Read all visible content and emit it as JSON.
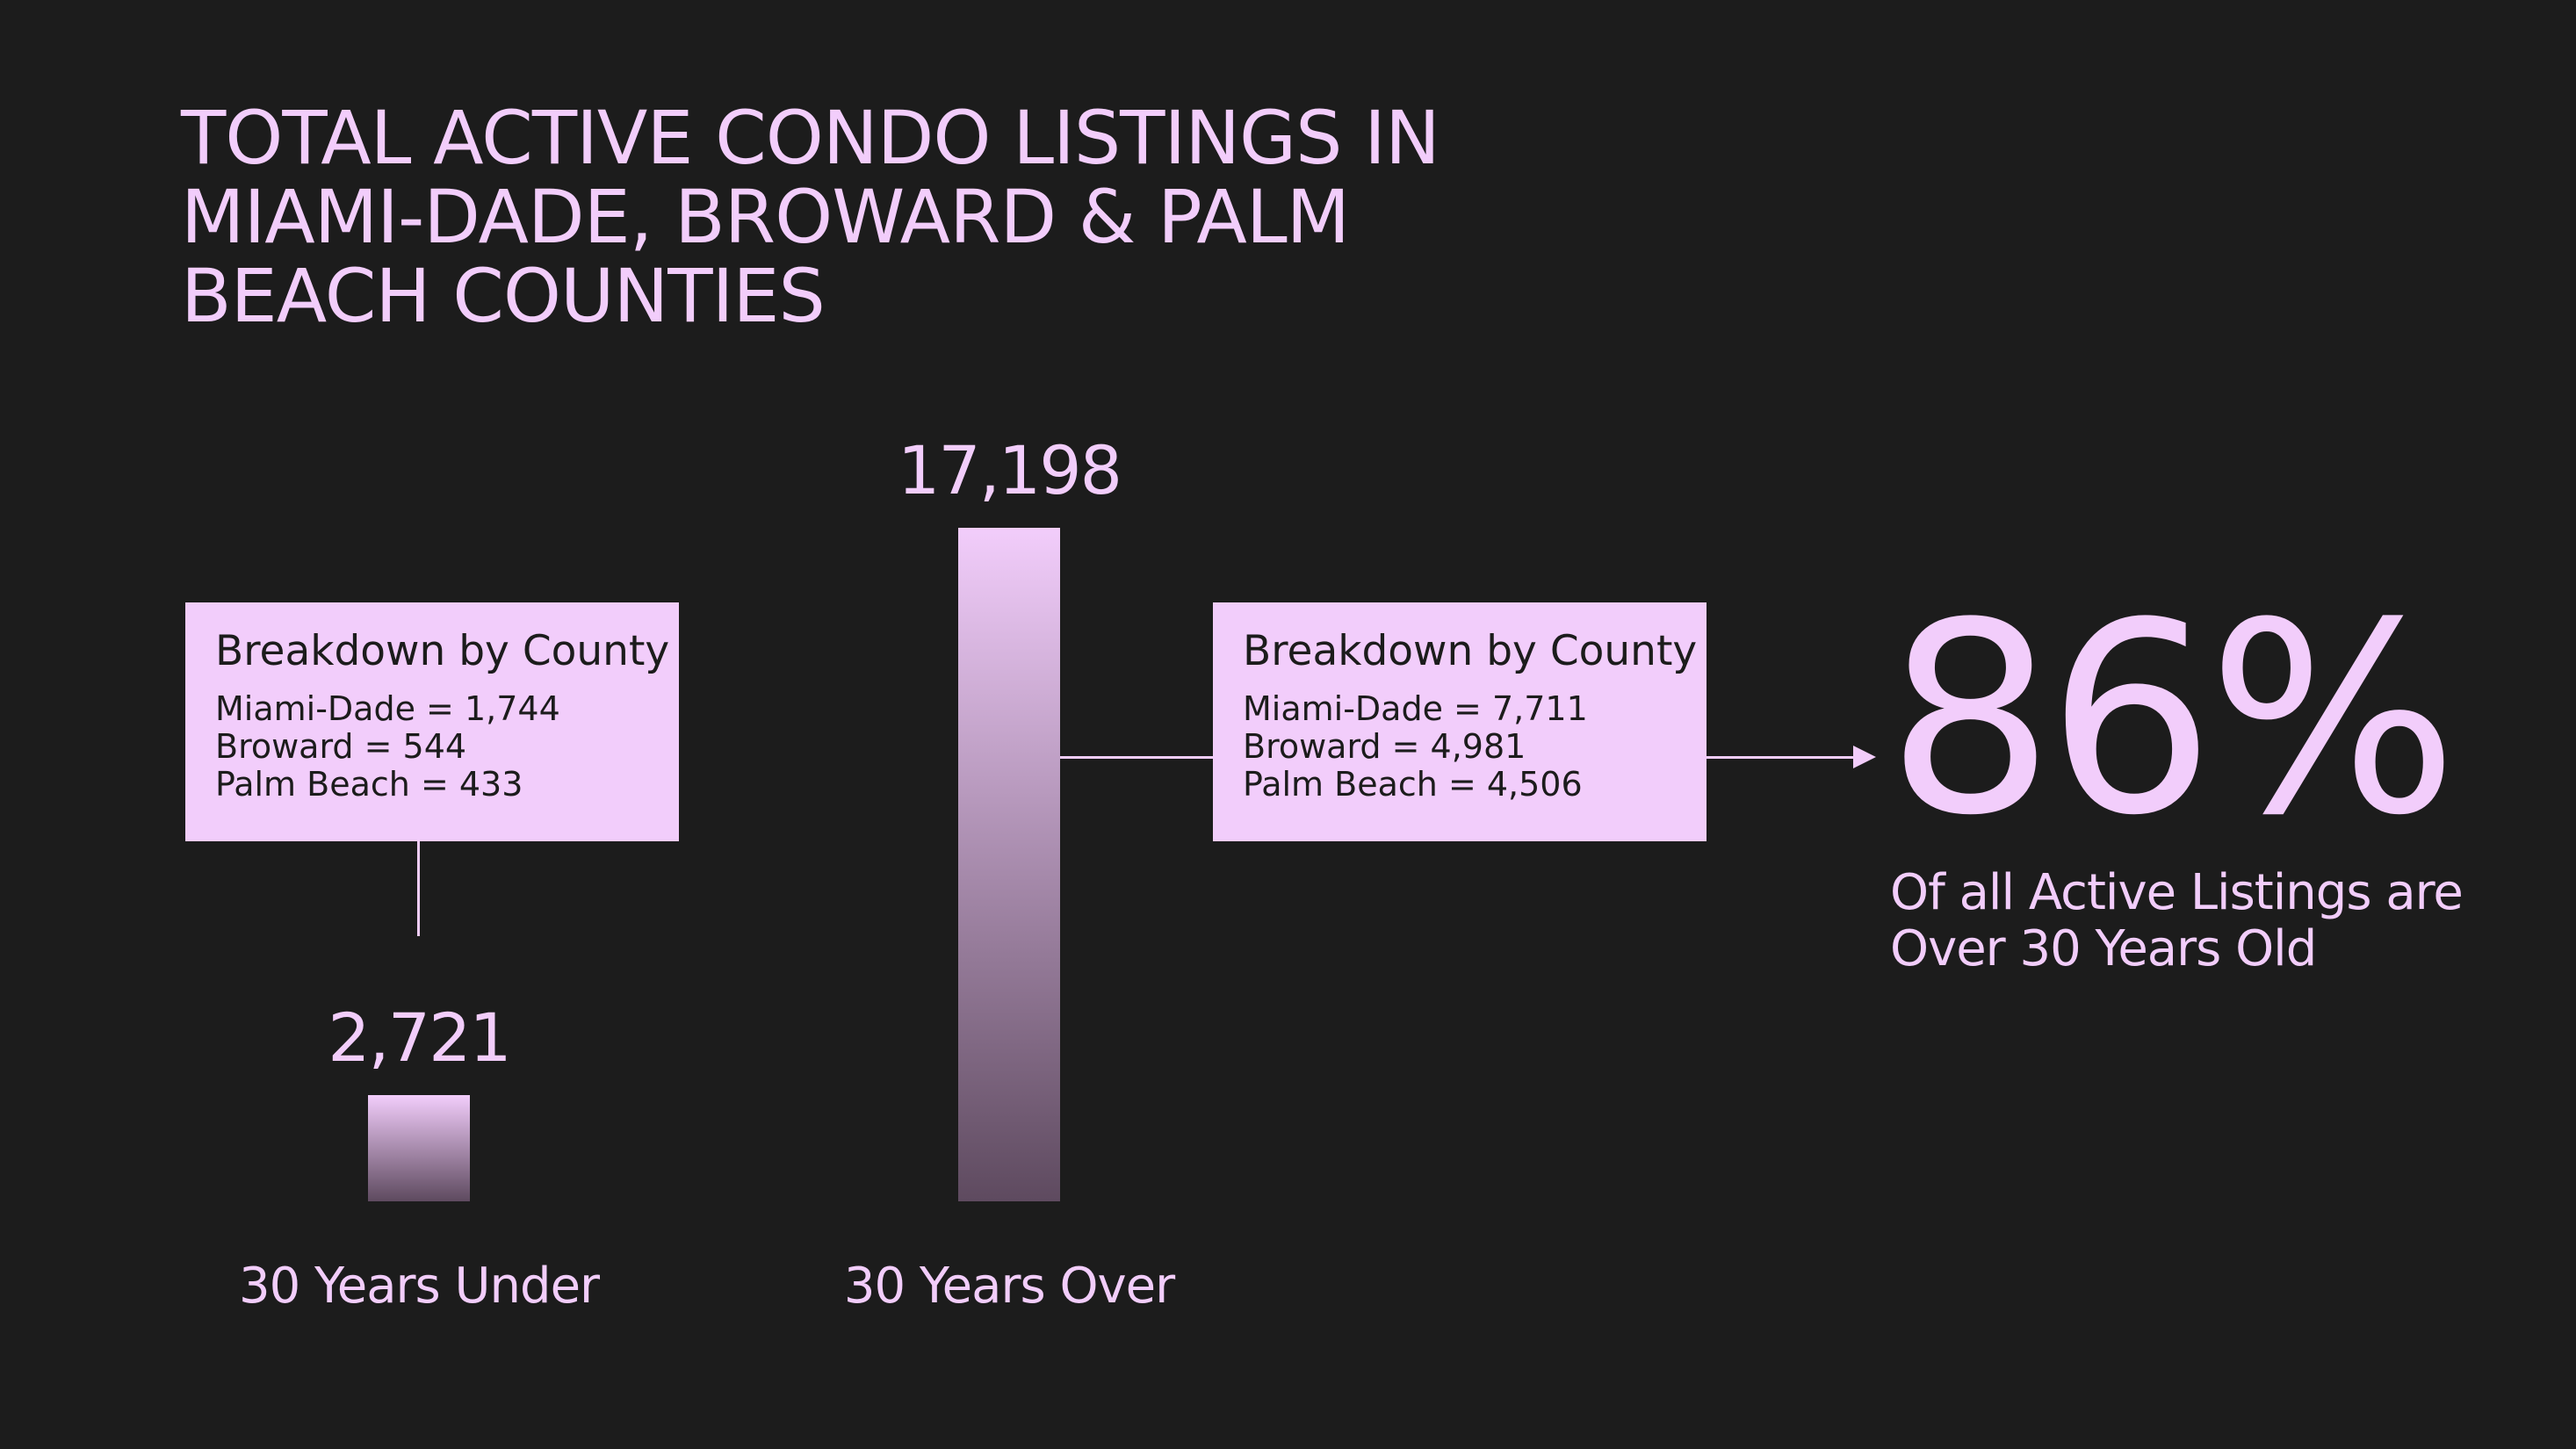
{
  "title_lines": [
    "TOTAL ACTIVE CONDO LISTINGS IN",
    "MIAMI-DADE, BROWARD & PALM",
    "BEACH COUNTIES"
  ],
  "chart_data": {
    "type": "bar",
    "title": "TOTAL ACTIVE CONDO LISTINGS IN MIAMI-DADE, BROWARD & PALM BEACH COUNTIES",
    "categories": [
      "30 Years Under",
      "30 Years Over"
    ],
    "values": [
      2721,
      17198
    ],
    "value_labels": [
      "2,721",
      "17,198"
    ],
    "ylim": [
      0,
      17198
    ],
    "grid": false,
    "legend": "none",
    "colors": {
      "bar_top": "#f2cdfb",
      "bar_bottom": "#5e4a5f",
      "background": "#1c1c1c"
    }
  },
  "breakdowns": [
    {
      "title": "Breakdown by County",
      "lines": [
        "Miami-Dade = 1,744",
        "Broward = 544",
        "Palm Beach = 433"
      ]
    },
    {
      "title": "Breakdown by County",
      "lines": [
        "Miami-Dade = 7,711",
        "Broward = 4,981",
        "Palm Beach = 4,506"
      ]
    }
  ],
  "highlight": {
    "percent": "86%",
    "caption_lines": [
      "Of all Active Listings are",
      "Over 30 Years Old"
    ]
  }
}
